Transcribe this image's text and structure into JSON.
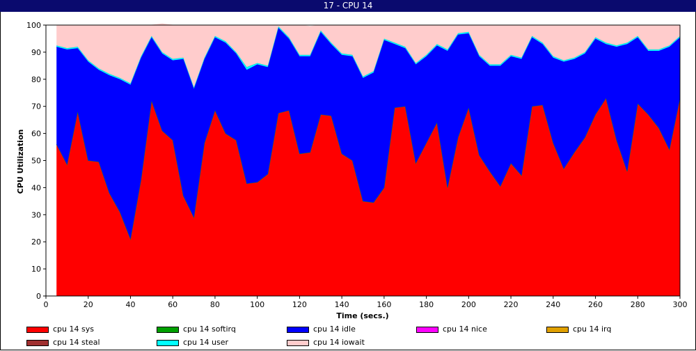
{
  "window": {
    "title": "17 - CPU 14"
  },
  "chart_data": {
    "type": "area",
    "stacked": true,
    "xlabel": "Time (secs.)",
    "ylabel": "CPU Utilization",
    "xlim": [
      0,
      300
    ],
    "ylim": [
      0,
      100
    ],
    "x_ticks": [
      0,
      20,
      40,
      60,
      80,
      100,
      120,
      140,
      160,
      180,
      200,
      220,
      240,
      260,
      280,
      300
    ],
    "y_ticks": [
      0,
      10,
      20,
      30,
      40,
      50,
      60,
      70,
      80,
      90,
      100
    ],
    "grid": false,
    "x": [
      5,
      10,
      15,
      20,
      25,
      30,
      35,
      40,
      45,
      50,
      55,
      60,
      65,
      70,
      75,
      80,
      85,
      90,
      95,
      100,
      105,
      110,
      115,
      120,
      125,
      130,
      135,
      140,
      145,
      150,
      155,
      160,
      165,
      170,
      175,
      180,
      185,
      190,
      195,
      200,
      205,
      210,
      215,
      220,
      225,
      230,
      235,
      240,
      245,
      250,
      255,
      260,
      265,
      270,
      275,
      280,
      285,
      290,
      295,
      300
    ],
    "series": [
      {
        "name": "cpu 14 sys",
        "color": "#ff0000",
        "values": [
          56,
          48.5,
          68,
          50,
          49.5,
          38,
          31,
          21,
          43,
          72,
          61,
          57.5,
          37,
          29,
          56.5,
          68.5,
          60,
          57.5,
          41.5,
          42,
          45,
          67.5,
          68.5,
          52.5,
          53,
          67,
          66.5,
          52.5,
          50,
          35,
          34.5,
          40,
          69.5,
          70,
          49,
          56.5,
          64,
          40,
          58.5,
          69.5,
          52,
          46,
          40.5,
          49,
          44.5,
          70,
          70.5,
          56.5,
          47,
          53,
          58.5,
          67,
          73,
          57.5,
          46,
          71,
          67,
          62,
          54,
          73
        ]
      },
      {
        "name": "cpu 14 softirq",
        "color": "#00a000",
        "values": [
          0,
          0,
          0,
          0,
          0,
          0,
          0,
          0,
          0,
          0,
          0,
          0,
          0,
          0,
          0,
          0,
          0,
          0,
          0,
          0,
          0,
          0,
          0,
          0,
          0,
          0,
          0,
          0,
          0,
          0,
          0,
          0,
          0,
          0,
          0,
          0,
          0,
          0,
          0,
          0,
          0,
          0,
          0,
          0,
          0,
          0,
          0,
          0,
          0,
          0,
          0,
          0,
          0,
          0,
          0,
          0,
          0,
          0,
          0,
          0
        ]
      },
      {
        "name": "cpu 14 idle",
        "color": "#0000ff",
        "values": [
          36,
          42.5,
          23.5,
          36.5,
          34,
          43.5,
          49,
          57,
          45,
          23.5,
          28.5,
          29.5,
          50.5,
          47.5,
          31,
          27,
          33.5,
          32,
          42,
          43.5,
          39.5,
          31.5,
          26.5,
          36,
          35.5,
          30.5,
          26.5,
          36.5,
          38.5,
          45.5,
          48,
          54.5,
          23.5,
          21.5,
          36.5,
          32,
          28.5,
          50.5,
          38,
          27.5,
          36.5,
          39,
          44.5,
          39.5,
          43,
          25.5,
          22.5,
          31.5,
          39.5,
          34.5,
          31,
          28,
          20,
          34.5,
          47,
          24.5,
          23.5,
          28.5,
          38,
          22.5
        ]
      },
      {
        "name": "cpu 14 nice",
        "color": "#ff00ff",
        "values": [
          0,
          0,
          0,
          0,
          0,
          0,
          0,
          0,
          0,
          0,
          0,
          0,
          0,
          0,
          0,
          0,
          0,
          0,
          0,
          0,
          0,
          0,
          0,
          0,
          0,
          0,
          0,
          0,
          0,
          0,
          0,
          0,
          0,
          0,
          0,
          0,
          0,
          0,
          0,
          0,
          0,
          0,
          0,
          0,
          0,
          0,
          0,
          0,
          0,
          0,
          0,
          0,
          0,
          0,
          0,
          0,
          0,
          0,
          0,
          0
        ]
      },
      {
        "name": "cpu 14 irq",
        "color": "#e0a000",
        "values": [
          0,
          0,
          0,
          0,
          0,
          0,
          0,
          0,
          0,
          0,
          0,
          0,
          0,
          0,
          0,
          0,
          0,
          0,
          0,
          0,
          0,
          0,
          0,
          0,
          0,
          0,
          0,
          0,
          0,
          0,
          0,
          0,
          0,
          0,
          0,
          0,
          0,
          0,
          0,
          0,
          0,
          0,
          0,
          0,
          0,
          0,
          0,
          0,
          0,
          0,
          0,
          0,
          0,
          0,
          0,
          0,
          0,
          0,
          0,
          0
        ]
      },
      {
        "name": "cpu 14 steal",
        "color": "#a03030",
        "values": [
          0,
          0,
          0,
          0,
          0,
          0,
          0,
          0,
          0,
          0,
          0,
          0,
          0,
          0,
          0,
          0,
          0,
          0,
          0,
          0,
          0,
          0,
          0,
          0,
          0,
          0,
          0,
          0,
          0,
          0,
          0,
          0,
          0,
          0,
          0,
          0,
          0,
          0,
          0,
          0,
          0,
          0,
          0,
          0,
          0,
          0,
          0,
          0,
          0,
          0,
          0,
          0,
          0,
          0,
          0,
          0,
          0,
          0,
          0,
          0
        ]
      },
      {
        "name": "cpu 14 user",
        "color": "#00ffff",
        "values": [
          0.5,
          0.5,
          0.5,
          0.5,
          0.5,
          0.5,
          0.5,
          0.5,
          0.5,
          0.5,
          0.5,
          0.5,
          0.5,
          0.5,
          0.5,
          0.5,
          0.5,
          0.5,
          1,
          0.5,
          0.5,
          0.5,
          0.5,
          0.5,
          0.5,
          0.5,
          0.5,
          0.5,
          0.5,
          0.5,
          0.5,
          0.5,
          0.5,
          0.5,
          0.5,
          0.5,
          0.5,
          0.5,
          0.5,
          0.5,
          0.5,
          0.5,
          0.5,
          0.5,
          0.5,
          0.5,
          0.5,
          0.5,
          0.5,
          0.5,
          0.5,
          0.5,
          0.5,
          0.5,
          0.5,
          0.5,
          0.5,
          0.5,
          0.5,
          0.5
        ]
      },
      {
        "name": "cpu 14 iowait",
        "color": "#ffcccc",
        "values": [
          7.5,
          8.5,
          8,
          13,
          16,
          18,
          19.5,
          21.5,
          11.5,
          4,
          10.5,
          12.5,
          12,
          23,
          12,
          4,
          6,
          10,
          15.5,
          14,
          15,
          0.5,
          4.5,
          11,
          10.5,
          2,
          6.5,
          10.5,
          11,
          19,
          17,
          5,
          6.5,
          8,
          14,
          11,
          7,
          9,
          3,
          2.5,
          11,
          14.5,
          14.5,
          11,
          12,
          4,
          6.5,
          11.5,
          13,
          12,
          10,
          4.5,
          6.5,
          7.5,
          6.5,
          4,
          9,
          9,
          7.5,
          4
        ]
      }
    ]
  },
  "legend": [
    {
      "label": "cpu 14 sys",
      "color": "#ff0000"
    },
    {
      "label": "cpu 14 softirq",
      "color": "#00a000"
    },
    {
      "label": "cpu 14 idle",
      "color": "#0000ff"
    },
    {
      "label": "cpu 14 nice",
      "color": "#ff00ff"
    },
    {
      "label": "cpu 14 irq",
      "color": "#e0a000"
    },
    {
      "label": "cpu 14 steal",
      "color": "#a03030"
    },
    {
      "label": "cpu 14 user",
      "color": "#00ffff"
    },
    {
      "label": "cpu 14 iowait",
      "color": "#ffcccc"
    }
  ]
}
